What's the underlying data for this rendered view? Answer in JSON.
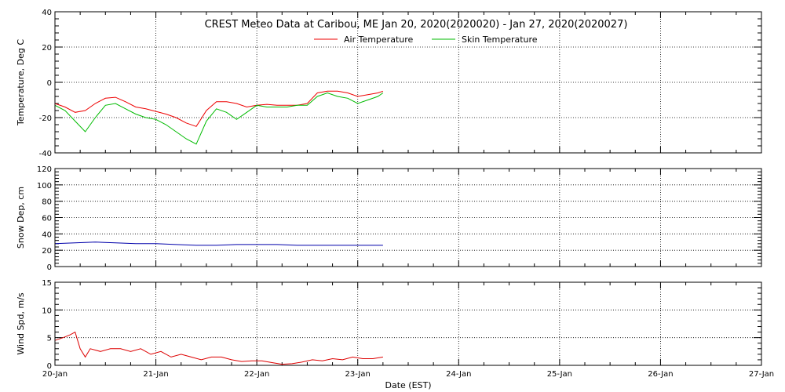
{
  "title": "CREST Meteo Data at Caribou, ME   Jan 20, 2020(2020020) - Jan 27, 2020(2020027)",
  "xlabel": "Date (EST)",
  "x_tick_labels": [
    "20-Jan",
    "21-Jan",
    "22-Jan",
    "23-Jan",
    "24-Jan",
    "25-Jan",
    "26-Jan",
    "27-Jan"
  ],
  "colors": {
    "air": "#ee0000",
    "skin": "#00bb00",
    "snow": "#0000aa",
    "wind": "#dd0000"
  },
  "chart_data": [
    {
      "type": "line",
      "ylabel": "Temperature, Deg C",
      "xlim": [
        "2020-01-20",
        "2020-01-27"
      ],
      "ylim": [
        -40,
        40
      ],
      "yticks": [
        -40,
        -20,
        0,
        20,
        40
      ],
      "grid": true,
      "legend": "top-center",
      "x_unit": "days since 2020-01-20 00:00",
      "series": [
        {
          "name": "Air Temperature",
          "color": "#ee0000",
          "x": [
            0,
            0.1,
            0.2,
            0.3,
            0.4,
            0.5,
            0.6,
            0.7,
            0.8,
            0.9,
            1.0,
            1.1,
            1.2,
            1.3,
            1.4,
            1.5,
            1.6,
            1.7,
            1.8,
            1.9,
            2.0,
            2.1,
            2.2,
            2.3,
            2.4,
            2.5,
            2.6,
            2.7,
            2.8,
            2.9,
            3.0,
            3.1,
            3.2,
            3.25
          ],
          "values": [
            -12,
            -14,
            -17,
            -16,
            -12,
            -9,
            -8.5,
            -11,
            -14,
            -15,
            -16.5,
            -18,
            -20,
            -23,
            -25,
            -16,
            -11,
            -11,
            -12,
            -14,
            -13,
            -12.5,
            -13,
            -13,
            -13,
            -12,
            -6,
            -5,
            -5,
            -6,
            -8,
            -7,
            -6,
            -5
          ]
        },
        {
          "name": "Skin Temperature",
          "color": "#00bb00",
          "x": [
            0,
            0.1,
            0.2,
            0.3,
            0.4,
            0.5,
            0.6,
            0.7,
            0.8,
            0.9,
            1.0,
            1.1,
            1.2,
            1.3,
            1.4,
            1.5,
            1.6,
            1.7,
            1.8,
            1.9,
            2.0,
            2.1,
            2.2,
            2.3,
            2.4,
            2.5,
            2.6,
            2.7,
            2.8,
            2.9,
            3.0,
            3.1,
            3.2,
            3.25
          ],
          "values": [
            -13,
            -16,
            -22,
            -28,
            -20,
            -13,
            -12,
            -15,
            -18,
            -20,
            -21,
            -24,
            -28,
            -32,
            -35,
            -22,
            -15,
            -17,
            -21,
            -17,
            -13,
            -14,
            -14,
            -14,
            -13,
            -13,
            -8,
            -6,
            -8,
            -9,
            -12,
            -10,
            -8,
            -6
          ]
        }
      ]
    },
    {
      "type": "line",
      "ylabel": "Snow Dep, cm",
      "xlim": [
        "2020-01-20",
        "2020-01-27"
      ],
      "ylim": [
        0,
        120
      ],
      "yticks": [
        0,
        20,
        40,
        60,
        80,
        100,
        120
      ],
      "grid": true,
      "x_unit": "days since 2020-01-20 00:00",
      "series": [
        {
          "color": "#0000aa",
          "x": [
            0,
            0.2,
            0.4,
            0.6,
            0.8,
            1.0,
            1.2,
            1.4,
            1.6,
            1.8,
            2.0,
            2.2,
            2.4,
            2.6,
            2.8,
            3.0,
            3.25
          ],
          "values": [
            28,
            29,
            30,
            29,
            28,
            28,
            27,
            26,
            26,
            27,
            27,
            27,
            26,
            26,
            26,
            26,
            26
          ]
        }
      ]
    },
    {
      "type": "line",
      "ylabel": "Wind Spd, m/s",
      "xlim": [
        "2020-01-20",
        "2020-01-27"
      ],
      "ylim": [
        0,
        15
      ],
      "yticks": [
        0,
        5,
        10,
        15
      ],
      "grid": true,
      "x_unit": "days since 2020-01-20 00:00",
      "series": [
        {
          "color": "#dd0000",
          "x": [
            0,
            0.08,
            0.15,
            0.2,
            0.25,
            0.3,
            0.35,
            0.45,
            0.55,
            0.65,
            0.75,
            0.85,
            0.95,
            1.05,
            1.15,
            1.25,
            1.35,
            1.45,
            1.55,
            1.65,
            1.75,
            1.85,
            1.95,
            2.05,
            2.15,
            2.25,
            2.35,
            2.45,
            2.55,
            2.65,
            2.75,
            2.85,
            2.95,
            3.05,
            3.15,
            3.25
          ],
          "values": [
            4.5,
            5,
            5.5,
            6,
            3,
            1.5,
            3,
            2.5,
            3,
            3,
            2.5,
            3,
            2,
            2.5,
            1.5,
            2,
            1.5,
            1,
            1.5,
            1.5,
            1,
            0.7,
            0.8,
            0.8,
            0.5,
            0.2,
            0.3,
            0.6,
            1,
            0.8,
            1.2,
            1,
            1.5,
            1.2,
            1.2,
            1.5
          ]
        }
      ]
    }
  ]
}
